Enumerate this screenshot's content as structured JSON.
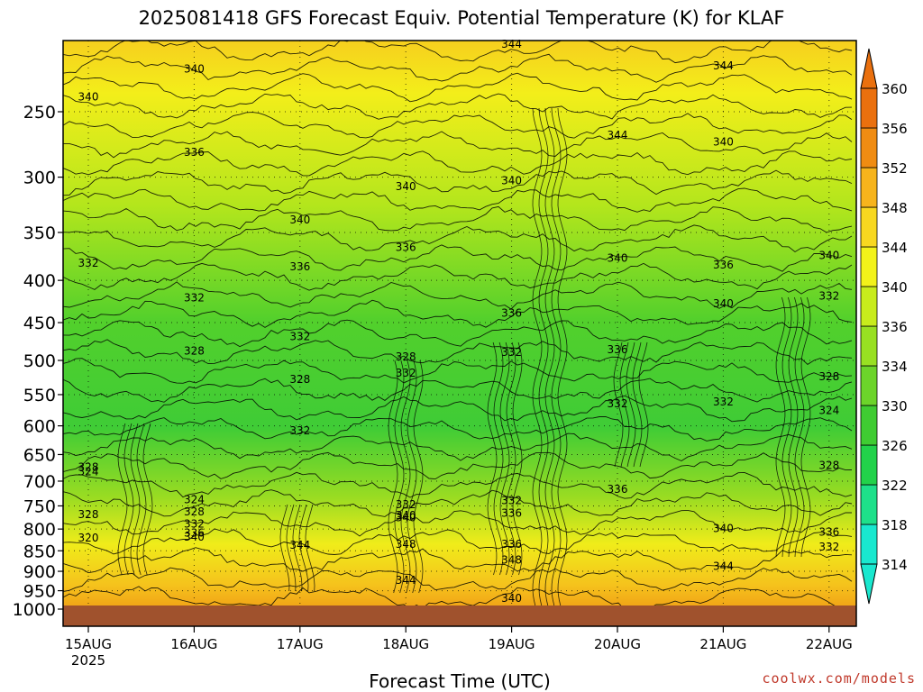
{
  "title": "2025081418 GFS Forecast Equiv. Potential Temperature (K) for KLAF",
  "credit": "coolwx.com/models",
  "chart_data": {
    "type": "heatmap",
    "title": "2025081418 GFS Forecast Equiv. Potential Temperature (K) for KLAF",
    "xlabel": "Forecast Time (UTC)",
    "ylabel": "",
    "x": {
      "ticks": [
        "15AUG",
        "16AUG",
        "17AUG",
        "18AUG",
        "19AUG",
        "20AUG",
        "21AUG",
        "22AUG"
      ],
      "first_tick_sublabel": "2025"
    },
    "y": {
      "ticks": [
        250,
        300,
        350,
        400,
        450,
        500,
        550,
        600,
        650,
        700,
        750,
        800,
        850,
        900,
        950,
        1000
      ],
      "scale": "log-pressure",
      "range": [
        1000,
        200
      ]
    },
    "colorbar": {
      "ticks": [
        314,
        318,
        322,
        326,
        330,
        334,
        336,
        340,
        344,
        348,
        352,
        356,
        360
      ],
      "colors": [
        "#19e8cf",
        "#1ee08a",
        "#22d24a",
        "#3fcc32",
        "#6cd42a",
        "#98e022",
        "#c8ec1c",
        "#f2f21a",
        "#f8d820",
        "#f7b41c",
        "#f08c12",
        "#ea700e"
      ]
    },
    "contour_labels": [
      {
        "value": "344",
        "x": "19AUG",
        "y": 207
      },
      {
        "value": "340",
        "x": "16AUG",
        "y": 222
      },
      {
        "value": "344",
        "x": "21AUG",
        "y": 220
      },
      {
        "value": "340",
        "x": "15AUG",
        "y": 240
      },
      {
        "value": "344",
        "x": "20AUG",
        "y": 267
      },
      {
        "value": "336",
        "x": "16AUG",
        "y": 280
      },
      {
        "value": "340",
        "x": "21AUG",
        "y": 272
      },
      {
        "value": "340",
        "x": "18AUG",
        "y": 308
      },
      {
        "value": "340",
        "x": "19AUG",
        "y": 303
      },
      {
        "value": "340",
        "x": "17AUG",
        "y": 338
      },
      {
        "value": "336",
        "x": "18AUG",
        "y": 365
      },
      {
        "value": "332",
        "x": "15AUG",
        "y": 381
      },
      {
        "value": "336",
        "x": "17AUG",
        "y": 385
      },
      {
        "value": "340",
        "x": "20AUG",
        "y": 376
      },
      {
        "value": "340",
        "x": "22AUG",
        "y": 373
      },
      {
        "value": "336",
        "x": "21AUG",
        "y": 383
      },
      {
        "value": "332",
        "x": "16AUG",
        "y": 420
      },
      {
        "value": "340",
        "x": "21AUG",
        "y": 427
      },
      {
        "value": "332",
        "x": "22AUG",
        "y": 418
      },
      {
        "value": "336",
        "x": "19AUG",
        "y": 438
      },
      {
        "value": "332",
        "x": "17AUG",
        "y": 468
      },
      {
        "value": "328",
        "x": "16AUG",
        "y": 487
      },
      {
        "value": "332",
        "x": "19AUG",
        "y": 489
      },
      {
        "value": "336",
        "x": "20AUG",
        "y": 485
      },
      {
        "value": "328",
        "x": "18AUG",
        "y": 495
      },
      {
        "value": "332",
        "x": "18AUG",
        "y": 518
      },
      {
        "value": "328",
        "x": "17AUG",
        "y": 527
      },
      {
        "value": "328",
        "x": "22AUG",
        "y": 523
      },
      {
        "value": "332",
        "x": "20AUG",
        "y": 564
      },
      {
        "value": "332",
        "x": "21AUG",
        "y": 561
      },
      {
        "value": "324",
        "x": "22AUG",
        "y": 575
      },
      {
        "value": "332",
        "x": "17AUG",
        "y": 608
      },
      {
        "value": "324",
        "x": "15AUG",
        "y": 682
      },
      {
        "value": "328",
        "x": "15AUG",
        "y": 673
      },
      {
        "value": "328",
        "x": "22AUG",
        "y": 670
      },
      {
        "value": "336",
        "x": "20AUG",
        "y": 716
      },
      {
        "value": "324",
        "x": "16AUG",
        "y": 737
      },
      {
        "value": "332",
        "x": "18AUG",
        "y": 747
      },
      {
        "value": "332",
        "x": "19AUG",
        "y": 739
      },
      {
        "value": "328",
        "x": "15AUG",
        "y": 768
      },
      {
        "value": "328",
        "x": "16AUG",
        "y": 762
      },
      {
        "value": "336",
        "x": "19AUG",
        "y": 765
      },
      {
        "value": "340",
        "x": "18AUG",
        "y": 775
      },
      {
        "value": "340",
        "x": "18AUG",
        "y": 770
      },
      {
        "value": "332",
        "x": "16AUG",
        "y": 789
      },
      {
        "value": "336",
        "x": "16AUG",
        "y": 809
      },
      {
        "value": "340",
        "x": "21AUG",
        "y": 799
      },
      {
        "value": "336",
        "x": "22AUG",
        "y": 807
      },
      {
        "value": "320",
        "x": "15AUG",
        "y": 820
      },
      {
        "value": "340",
        "x": "16AUG",
        "y": 818
      },
      {
        "value": "336",
        "x": "19AUG",
        "y": 835
      },
      {
        "value": "332",
        "x": "22AUG",
        "y": 841
      },
      {
        "value": "344",
        "x": "17AUG",
        "y": 837
      },
      {
        "value": "348",
        "x": "18AUG",
        "y": 835
      },
      {
        "value": "348",
        "x": "19AUG",
        "y": 872
      },
      {
        "value": "344",
        "x": "21AUG",
        "y": 888
      },
      {
        "value": "344",
        "x": "18AUG",
        "y": 923
      },
      {
        "value": "340",
        "x": "19AUG",
        "y": 970
      }
    ]
  }
}
